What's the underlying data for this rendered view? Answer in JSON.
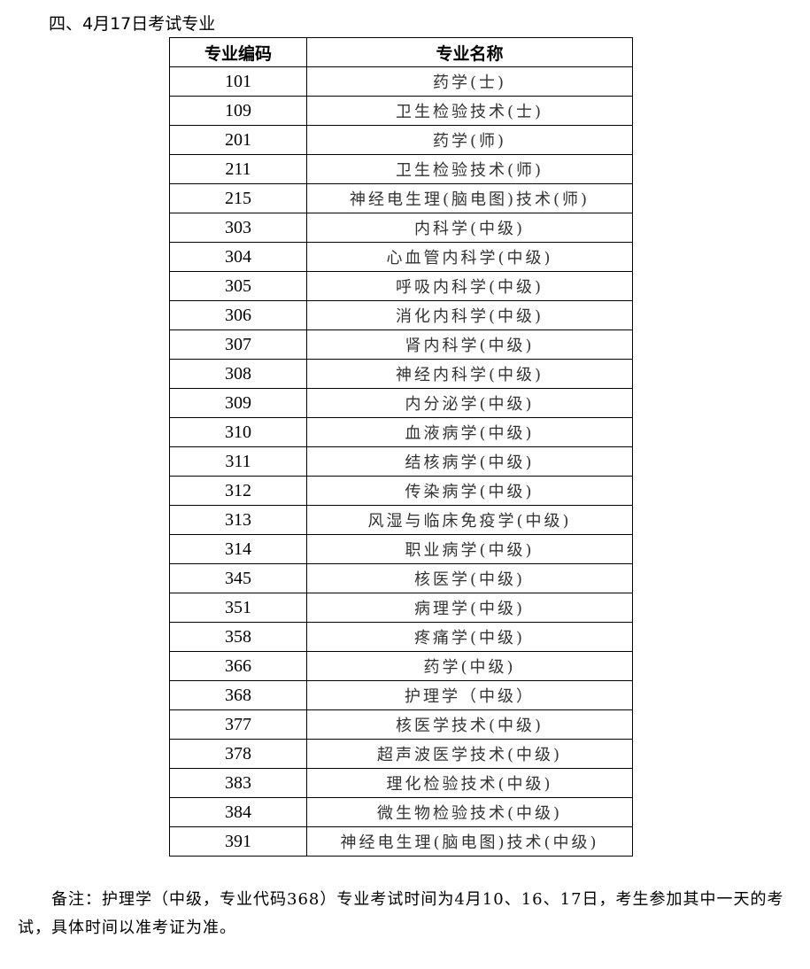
{
  "heading": "四、4月17日考试专业",
  "table": {
    "headers": [
      "专业编码",
      "专业名称"
    ],
    "rows": [
      [
        "101",
        "药学(士)"
      ],
      [
        "109",
        "卫生检验技术(士)"
      ],
      [
        "201",
        "药学(师)"
      ],
      [
        "211",
        "卫生检验技术(师)"
      ],
      [
        "215",
        "神经电生理(脑电图)技术(师)"
      ],
      [
        "303",
        "内科学(中级)"
      ],
      [
        "304",
        "心血管内科学(中级)"
      ],
      [
        "305",
        "呼吸内科学(中级)"
      ],
      [
        "306",
        "消化内科学(中级)"
      ],
      [
        "307",
        "肾内科学(中级)"
      ],
      [
        "308",
        "神经内科学(中级)"
      ],
      [
        "309",
        "内分泌学(中级)"
      ],
      [
        "310",
        "血液病学(中级)"
      ],
      [
        "311",
        "结核病学(中级)"
      ],
      [
        "312",
        "传染病学(中级)"
      ],
      [
        "313",
        "风湿与临床免疫学(中级)"
      ],
      [
        "314",
        "职业病学(中级)"
      ],
      [
        "345",
        "核医学(中级)"
      ],
      [
        "351",
        "病理学(中级)"
      ],
      [
        "358",
        "疼痛学(中级)"
      ],
      [
        "366",
        "药学(中级)"
      ],
      [
        "368",
        "护理学（中级）"
      ],
      [
        "377",
        "核医学技术(中级)"
      ],
      [
        "378",
        "超声波医学技术(中级)"
      ],
      [
        "383",
        "理化检验技术(中级)"
      ],
      [
        "384",
        "微生物检验技术(中级)"
      ],
      [
        "391",
        "神经电生理(脑电图)技术(中级)"
      ]
    ]
  },
  "note": "备注：护理学（中级，专业代码368）专业考试时间为4月10、16、17日，考生参加其中一天的考试，具体时间以准考证为准。"
}
